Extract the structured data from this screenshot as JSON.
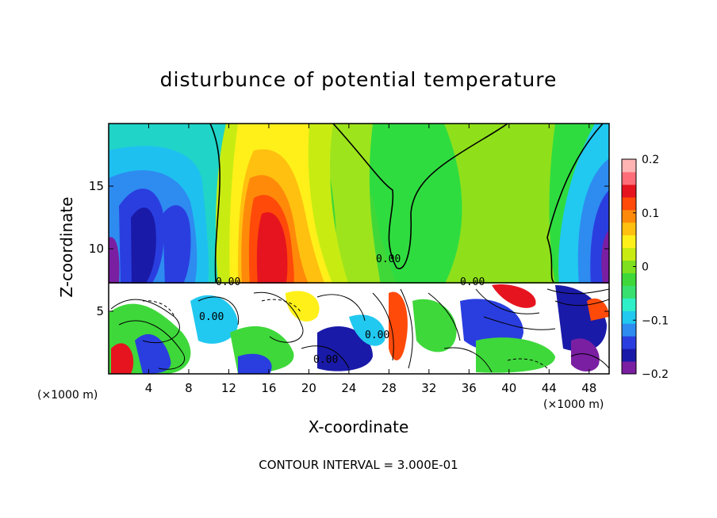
{
  "chart_data": {
    "type": "heatmap",
    "title": "disturbunce of potential temperature",
    "xlabel": "X-coordinate",
    "ylabel": "Z-coordinate",
    "x_unit": "(×1000 m)",
    "y_unit": "(×1000 m)",
    "xlim": [
      0,
      50
    ],
    "ylim": [
      0,
      20
    ],
    "x_ticks": [
      4,
      8,
      12,
      16,
      20,
      24,
      28,
      32,
      36,
      40,
      44,
      48
    ],
    "y_ticks": [
      5,
      10,
      15
    ],
    "colorbar": {
      "min": -0.2,
      "max": 0.2,
      "tick_values": [
        0.2,
        0.1,
        0,
        -0.1,
        -0.2
      ],
      "tick_labels": [
        "0.2",
        "0.1",
        "0",
        "−0.1",
        "−0.2"
      ],
      "colors": [
        "#7a1fa2",
        "#1a1aa8",
        "#2a3ee0",
        "#2e8bf0",
        "#21c8f0",
        "#2ef0c8",
        "#38e070",
        "#3ed83a",
        "#7ee01e",
        "#c8ec12",
        "#fff019",
        "#ffc00f",
        "#ff8a0a",
        "#ff4a0a",
        "#e6141e",
        "#ff6e78",
        "#ffb4b4"
      ]
    },
    "contour_interval": "CONTOUR INTERVAL = 3.000E-01",
    "contour_labels": [
      "0.00",
      "0.00",
      "0.00",
      "0.00",
      "0.00",
      "0.00"
    ]
  }
}
